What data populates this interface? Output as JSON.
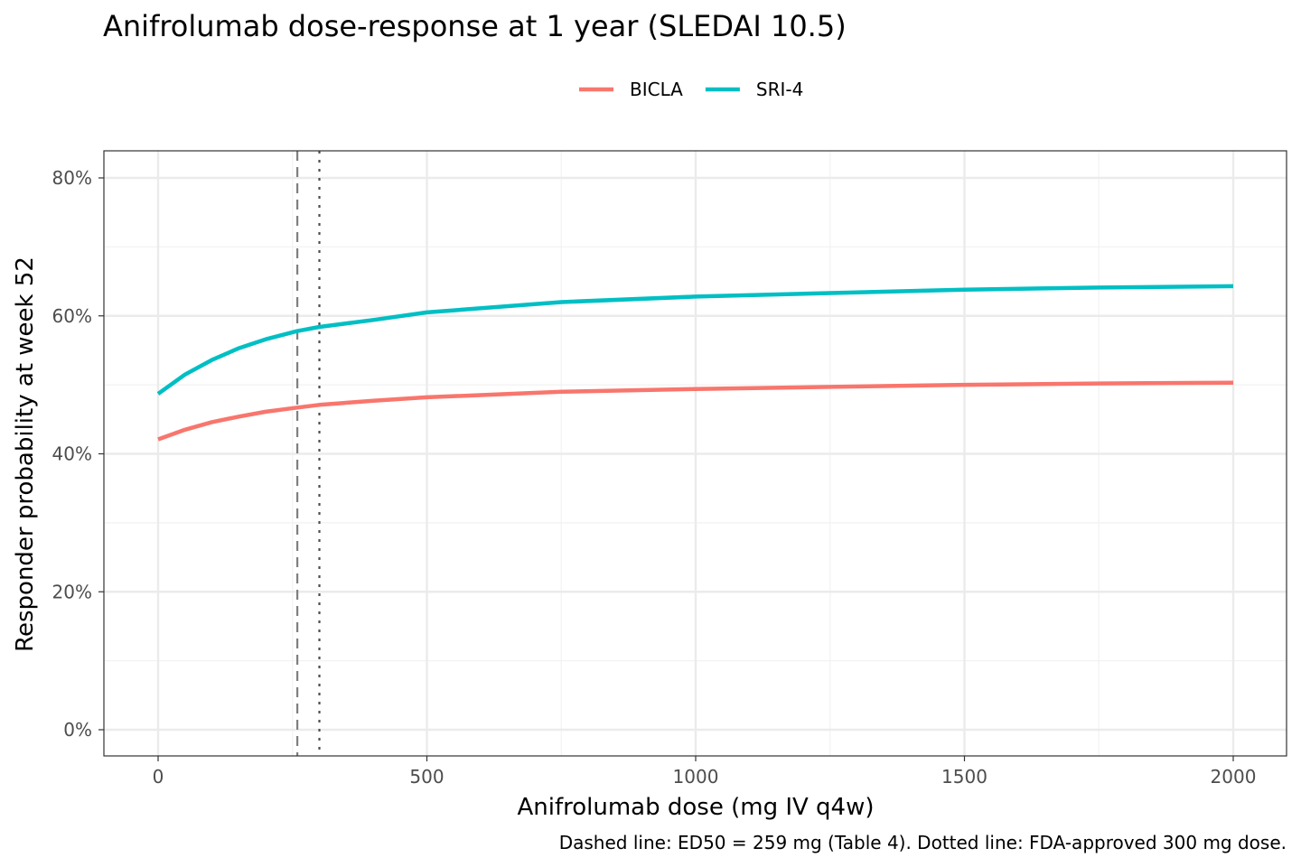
{
  "chart_data": {
    "type": "line",
    "title": "Anifrolumab dose-response at 1 year (SLEDAI 10.5)",
    "xlabel": "Anifrolumab dose (mg IV q4w)",
    "ylabel": "Responder probability at week 52",
    "caption": "Dashed line: ED50 = 259 mg (Table 4). Dotted line: FDA-approved 300 mg dose.",
    "xlim": [
      -100,
      2100
    ],
    "ylim": [
      -0.038,
      0.838
    ],
    "x_ticks": [
      0,
      500,
      1000,
      1500,
      2000
    ],
    "x_tick_labels": [
      "0",
      "500",
      "1000",
      "1500",
      "2000"
    ],
    "y_ticks": [
      0,
      0.2,
      0.4,
      0.6,
      0.8
    ],
    "y_tick_labels": [
      "0%",
      "20%",
      "40%",
      "60%",
      "80%"
    ],
    "grid": true,
    "legend_position": "top",
    "x": [
      0,
      50,
      100,
      150,
      200,
      259,
      300,
      400,
      500,
      750,
      1000,
      1250,
      1500,
      1750,
      2000
    ],
    "series": [
      {
        "name": "BICLA",
        "color": "#F8766D",
        "values": [
          0.421,
          0.435,
          0.446,
          0.454,
          0.461,
          0.467,
          0.471,
          0.477,
          0.482,
          0.49,
          0.494,
          0.497,
          0.5,
          0.502,
          0.503
        ]
      },
      {
        "name": "SRI-4",
        "color": "#00BFC4",
        "values": [
          0.487,
          0.515,
          0.536,
          0.553,
          0.566,
          0.578,
          0.584,
          0.594,
          0.605,
          0.62,
          0.628,
          0.633,
          0.638,
          0.641,
          0.643
        ]
      }
    ],
    "reference_lines": [
      {
        "x": 259,
        "style": "dashed",
        "color": "#7f7f7f"
      },
      {
        "x": 300,
        "style": "dotted",
        "color": "#4d4d4d"
      }
    ]
  }
}
